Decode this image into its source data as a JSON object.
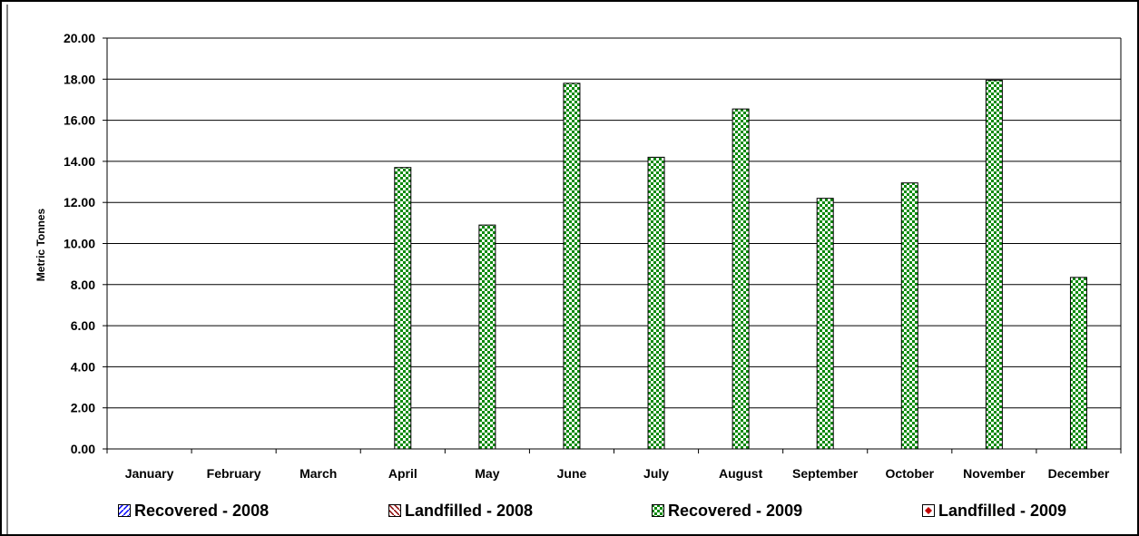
{
  "chart_data": {
    "type": "bar",
    "ylabel": "Metric Tonnes",
    "ylim": [
      0,
      20
    ],
    "yticks": [
      "0.00",
      "2.00",
      "4.00",
      "6.00",
      "8.00",
      "10.00",
      "12.00",
      "14.00",
      "16.00",
      "18.00",
      "20.00"
    ],
    "categories": [
      "January",
      "February",
      "March",
      "April",
      "May",
      "June",
      "July",
      "August",
      "September",
      "October",
      "November",
      "December"
    ],
    "series": [
      {
        "name": "Recovered - 2008",
        "values": [
          null,
          null,
          null,
          null,
          null,
          null,
          null,
          null,
          null,
          null,
          null,
          null
        ],
        "color": "#0000ff"
      },
      {
        "name": "Landfilled - 2008",
        "values": [
          null,
          null,
          null,
          null,
          null,
          null,
          null,
          null,
          null,
          null,
          null,
          null
        ],
        "color": "#8b0000"
      },
      {
        "name": "Recovered - 2009",
        "values": [
          null,
          null,
          null,
          13.7,
          10.9,
          17.8,
          14.2,
          16.55,
          12.2,
          12.95,
          17.95,
          8.35
        ],
        "color": "#008000"
      },
      {
        "name": "Landfilled - 2009",
        "values": [
          null,
          null,
          null,
          null,
          null,
          null,
          null,
          null,
          null,
          null,
          null,
          null
        ],
        "color": "#c00000"
      }
    ],
    "grid": true,
    "legend_position": "bottom"
  }
}
